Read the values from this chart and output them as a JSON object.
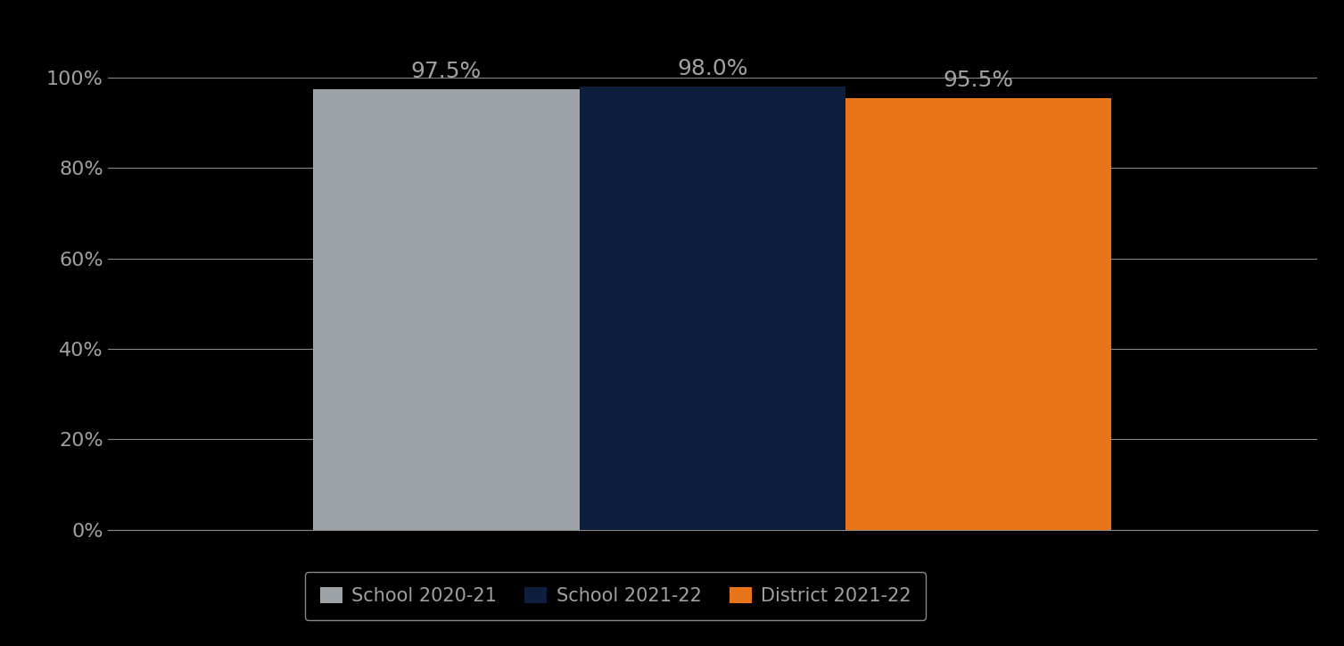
{
  "categories": [
    "School 2020-21",
    "School 2021-22",
    "District 2021-22"
  ],
  "values": [
    97.5,
    98.0,
    95.5
  ],
  "bar_colors": [
    "#9EA3A8",
    "#0D1F3C",
    "#E8751A"
  ],
  "value_labels": [
    "97.5%",
    "98.0%",
    "95.5%"
  ],
  "ylim": [
    0,
    100
  ],
  "yticks": [
    0,
    20,
    40,
    60,
    80,
    100
  ],
  "ytick_labels": [
    "0%",
    "20%",
    "40%",
    "60%",
    "80%",
    "100%"
  ],
  "background_color": "#000000",
  "text_color": "#A0A0A0",
  "grid_color": "#888888",
  "label_fontsize": 18,
  "tick_fontsize": 16,
  "legend_fontsize": 15,
  "bar_width": 0.22,
  "x_positions": [
    0.28,
    0.5,
    0.72
  ],
  "xlim": [
    0.0,
    1.0
  ]
}
